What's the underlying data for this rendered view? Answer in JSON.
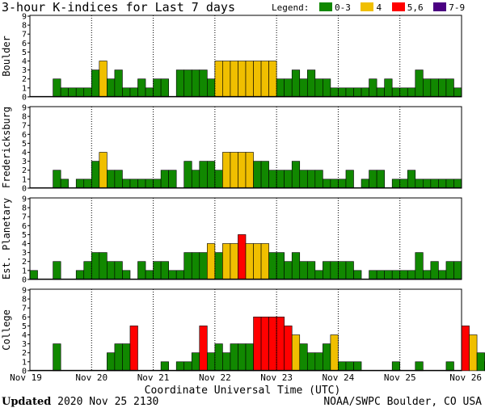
{
  "title": "3-hour K-indices for Last 7 days",
  "legend": {
    "label": "Legend:",
    "items": [
      {
        "label": "0-3",
        "color": "#118800"
      },
      {
        "label": "4",
        "color": "#f0bf00"
      },
      {
        "label": "5,6",
        "color": "#ff0000"
      },
      {
        "label": "7-9",
        "color": "#4b0082"
      }
    ]
  },
  "footer": {
    "updated_label": "Updated",
    "updated_value": "2020 Nov 25 2130",
    "credit": "NOAA/SWPC Boulder, CO USA"
  },
  "chart_data": {
    "type": "bar",
    "xlabel": "Coordinate Universal Time (UTC)",
    "x_ticks": [
      "Nov 19",
      "Nov 20",
      "Nov 21",
      "Nov 22",
      "Nov 23",
      "Nov 24",
      "Nov 25",
      "Nov 26"
    ],
    "ylim": [
      0,
      9
    ],
    "y_ticks": [
      0,
      1,
      2,
      3,
      4,
      5,
      6,
      7,
      8,
      9
    ],
    "intervals_per_day": 8,
    "color_scale": [
      {
        "range": "0-3",
        "color": "#118800"
      },
      {
        "range": "4",
        "color": "#f0bf00"
      },
      {
        "range": "5-6",
        "color": "#ff0000"
      },
      {
        "range": "7-9",
        "color": "#4b0082"
      }
    ],
    "series": [
      {
        "name": "Boulder",
        "values": [
          0,
          0,
          0,
          2,
          1,
          1,
          1,
          1,
          3,
          4,
          2,
          3,
          1,
          1,
          2,
          1,
          2,
          2,
          0,
          3,
          3,
          3,
          3,
          2,
          4,
          4,
          4,
          4,
          4,
          4,
          4,
          4,
          2,
          2,
          3,
          2,
          3,
          2,
          2,
          1,
          1,
          1,
          1,
          1,
          2,
          1,
          2,
          1,
          1,
          1,
          3,
          2,
          2,
          2,
          2,
          1,
          0
        ]
      },
      {
        "name": "Fredericksburg",
        "values": [
          0,
          0,
          0,
          2,
          1,
          0,
          1,
          1,
          3,
          4,
          2,
          2,
          1,
          1,
          1,
          1,
          1,
          2,
          2,
          0,
          3,
          2,
          3,
          3,
          2,
          4,
          4,
          4,
          4,
          3,
          3,
          2,
          2,
          2,
          3,
          2,
          2,
          2,
          1,
          1,
          1,
          2,
          0,
          1,
          2,
          2,
          0,
          1,
          1,
          2,
          1,
          1,
          1,
          1,
          1,
          1,
          0
        ]
      },
      {
        "name": "Est. Planetary",
        "values": [
          1,
          0,
          0,
          2,
          0,
          0,
          1,
          2,
          3,
          3,
          2,
          2,
          1,
          0,
          2,
          1,
          2,
          2,
          1,
          1,
          3,
          3,
          3,
          4,
          3,
          4,
          4,
          5,
          4,
          4,
          4,
          3,
          3,
          2,
          3,
          2,
          2,
          1,
          2,
          2,
          2,
          2,
          1,
          0,
          1,
          1,
          1,
          1,
          1,
          1,
          3,
          1,
          2,
          1,
          2,
          2
        ]
      },
      {
        "name": "College",
        "values": [
          0,
          0,
          0,
          3,
          0,
          0,
          0,
          0,
          0,
          0,
          2,
          3,
          3,
          5,
          0,
          0,
          0,
          1,
          0,
          1,
          1,
          2,
          5,
          2,
          3,
          2,
          3,
          3,
          3,
          6,
          6,
          6,
          6,
          5,
          4,
          3,
          2,
          2,
          3,
          4,
          1,
          1,
          1,
          0,
          0,
          0,
          0,
          1,
          0,
          0,
          1,
          0,
          0,
          0,
          1,
          0,
          5,
          4,
          2,
          1,
          0
        ]
      }
    ]
  }
}
